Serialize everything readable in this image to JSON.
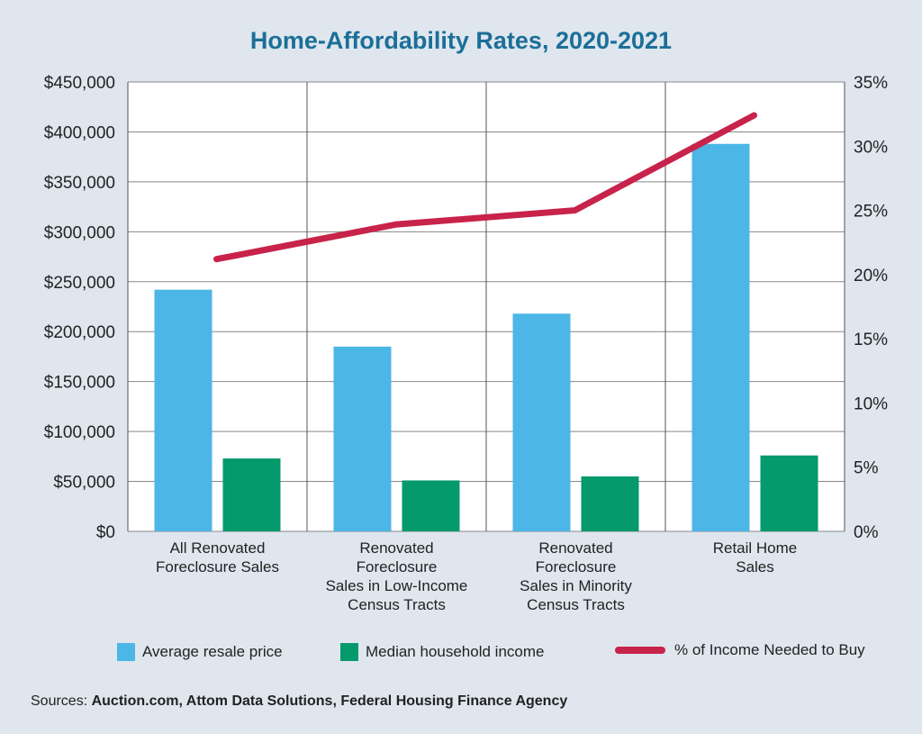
{
  "title": "Home-Affordability Rates, 2020-2021",
  "chart_data": {
    "type": "bar",
    "categories": [
      [
        "All Renovated",
        "Foreclosure Sales"
      ],
      [
        "Renovated",
        "Foreclosure",
        "Sales in Low-Income",
        "Census Tracts"
      ],
      [
        "Renovated",
        "Foreclosure",
        "Sales in Minority",
        "Census Tracts"
      ],
      [
        "Retail Home",
        "Sales"
      ]
    ],
    "series": [
      {
        "name": "Average resale price",
        "type": "bar",
        "axis": "left",
        "color": "#4cb6e6",
        "values": [
          242000,
          185000,
          218000,
          388000
        ]
      },
      {
        "name": "Median household income",
        "type": "bar",
        "axis": "left",
        "color": "#059a6c",
        "values": [
          73000,
          51000,
          55000,
          76000
        ]
      },
      {
        "name": "% of Income Needed to Buy",
        "type": "line",
        "axis": "right",
        "color": "#c8234a",
        "values": [
          21.2,
          23.9,
          25,
          32.4
        ]
      }
    ],
    "y_left": {
      "lim": [
        0,
        450000
      ],
      "ticks": [
        "$0",
        "$50,000",
        "$100,000",
        "$150,000",
        "$200,000",
        "$250,000",
        "$300,000",
        "$350,000",
        "$400,000",
        "$450,000"
      ]
    },
    "y_right": {
      "lim": [
        0,
        35
      ],
      "ticks": [
        "0%",
        "5%",
        "10%",
        "15%",
        "20%",
        "25%",
        "30%",
        "35%"
      ]
    },
    "grid": {
      "horizontal": true,
      "vertical_category_dividers": true
    },
    "legend_position": "bottom"
  },
  "legend": {
    "avg_label": "Average resale price",
    "median_label": "Median household income",
    "pct_label": "% of Income Needed to Buy"
  },
  "sources": {
    "prefix": "Sources: ",
    "text": "Auction.com, Attom Data Solutions, Federal Housing Finance Agency"
  }
}
